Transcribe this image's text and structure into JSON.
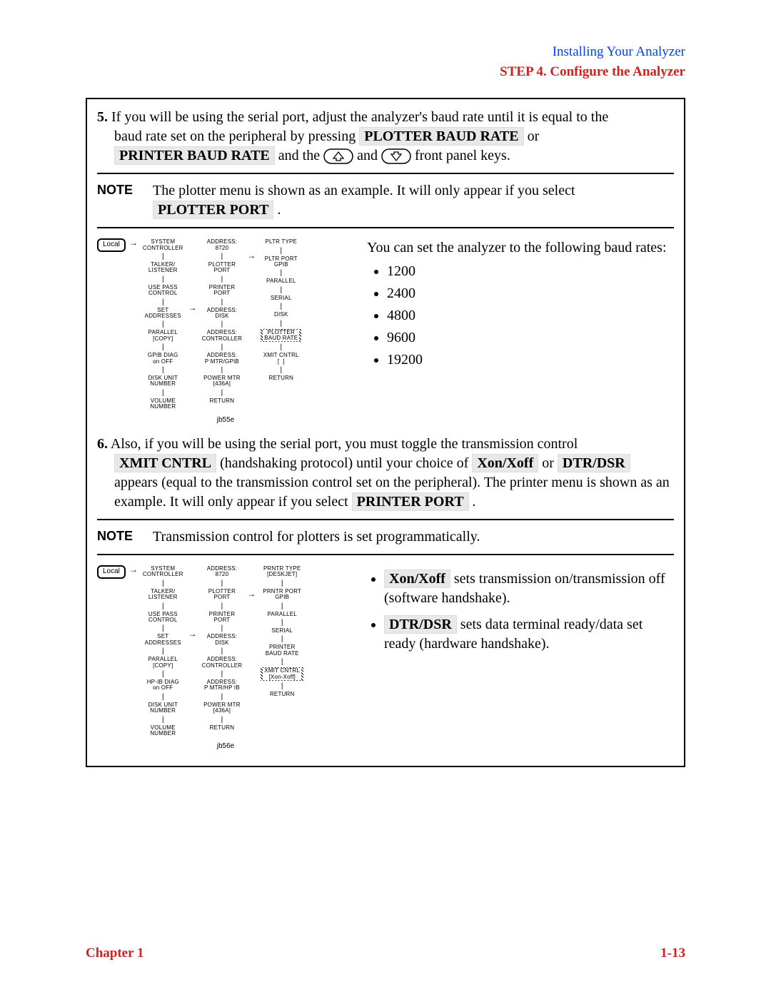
{
  "header": {
    "section_title": "Installing Your Analyzer",
    "step_title": "STEP 4. Configure the Analyzer"
  },
  "step5": {
    "num": "5.",
    "text_a": " If you will be using the serial port, adjust the analyzer's baud rate until it is equal to the",
    "text_b": "baud rate set on the peripheral by pressing ",
    "key1": "PLOTTER BAUD RATE",
    "or": " or",
    "key2": "PRINTER BAUD RATE",
    "text_c": " and the ",
    "text_d": " and ",
    "text_e": " front panel keys."
  },
  "note1": {
    "label": "NOTE",
    "body_a": "The plotter menu is shown as an example. It will only appear if you select ",
    "key": "PLOTTER PORT",
    "body_b": " ."
  },
  "diagram1": {
    "local": "Local",
    "col1": [
      "SYSTEM\nCONTROLLER",
      "TALKER/\nLISTENER",
      "USE PASS\nCONTROL",
      "SET\nADDRESSES",
      "PARALLEL\n[COPY]",
      "GPIB DIAG\non OFF",
      "DISK UNIT\nNUMBER",
      "VOLUME\nNUMBER"
    ],
    "col2": [
      "ADDRESS:\n8720",
      "PLOTTER\nPORT",
      "PRINTER\nPORT",
      "ADDRESS:\nDISK",
      "ADDRESS:\nCONTROLLER",
      "ADDRESS:\nP MTR/GPIB",
      "POWER MTR\n[436A]",
      "RETURN"
    ],
    "col3": [
      "PLTR TYPE",
      "PLTR PORT\nGPIB",
      "PARALLEL",
      "SERIAL",
      "DISK",
      "PLOTTER\nBAUD RATE",
      "XMIT CNTRL\n[  ]",
      "RETURN"
    ],
    "label": "jb55e"
  },
  "baud": {
    "intro": "You can set the analyzer to the following baud rates:",
    "rates": [
      "1200",
      "2400",
      "4800",
      "9600",
      "19200"
    ]
  },
  "step6": {
    "num": "6.",
    "text_a": " Also, if you will be using the serial port, you must toggle the transmission control ",
    "key1": "XMIT CNTRL",
    "text_b": " (handshaking protocol) until your choice of ",
    "key2": "Xon/Xoff",
    "or": " or ",
    "key3": "DTR/DSR",
    "text_c": " appears (equal to the transmission control set on the peripheral). The printer menu is shown as an example. It will only appear if you select ",
    "key4": "PRINTER PORT",
    "text_d": " ."
  },
  "note2": {
    "label": "NOTE",
    "body": "Transmission control for plotters is set programmatically."
  },
  "diagram2": {
    "local": "Local",
    "col1": [
      "SYSTEM\nCONTROLLER",
      "TALKER/\nLISTENER",
      "USE PASS\nCONTROL",
      "SET\nADDRESSES",
      "PARALLEL\n[COPY]",
      "HP-IB DIAG\non OFF",
      "DISK UNIT\nNUMBER",
      "VOLUME\nNUMBER"
    ],
    "col2": [
      "ADDRESS:\n8720",
      "PLOTTER\nPORT",
      "PRINTER\nPORT",
      "ADDRESS:\nDISK",
      "ADDRESS:\nCONTROLLER",
      "ADDRESS:\nP MTR/HP IB",
      "POWER MTR\n[436A]",
      "RETURN"
    ],
    "col3": [
      "PRNTR TYPE\n[DESKJET]",
      "PRNTR PORT\nGPIB",
      "PARALLEL",
      "SERIAL",
      "PRINTER\nBAUD RATE",
      "XMIT CNTRL\n[Xon-Xoff]",
      "RETURN"
    ],
    "label": "jb56e"
  },
  "xmit_opts": {
    "opt1_key": "Xon/Xoff",
    "opt1_text": " sets transmission on/transmission off (software handshake).",
    "opt2_key": "DTR/DSR",
    "opt2_text": " sets data terminal ready/data set ready (hardware handshake)."
  },
  "footer": {
    "left": "Chapter 1",
    "right": "1-13"
  }
}
